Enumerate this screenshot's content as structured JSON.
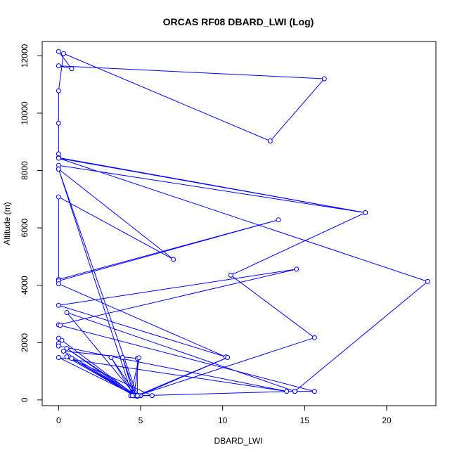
{
  "chart_data": {
    "type": "line",
    "title": "ORCAS RF08 DBARD_LWI (Log)",
    "xlabel": "DBARD_LWI",
    "ylabel": "Altitude (m)",
    "xlim": [
      -1.0,
      23.0
    ],
    "ylim": [
      -200,
      12500
    ],
    "xticks": [
      0,
      5,
      10,
      15,
      20
    ],
    "yticks": [
      0,
      2000,
      4000,
      6000,
      8000,
      10000,
      12000
    ],
    "grid": false,
    "color": "#0000ff",
    "series": [
      {
        "points": [
          [
            0.0,
            12150
          ],
          [
            0.8,
            11550
          ],
          [
            0.0,
            11650
          ],
          [
            16.2,
            11200
          ],
          [
            12.9,
            9030
          ],
          [
            0.3,
            12080
          ],
          [
            0.0,
            10780
          ],
          [
            0.0,
            9650
          ],
          [
            0.0,
            8580
          ],
          [
            0.0,
            8450
          ],
          [
            18.7,
            6530
          ],
          [
            0.0,
            8180
          ],
          [
            0.0,
            8050
          ],
          [
            7.0,
            4900
          ],
          [
            0.0,
            7080
          ],
          [
            0.0,
            4200
          ],
          [
            13.4,
            6280
          ],
          [
            0.0,
            4150
          ],
          [
            0.0,
            4050
          ],
          [
            10.2,
            1500
          ],
          [
            0.0,
            3300
          ],
          [
            14.5,
            4560
          ],
          [
            0.0,
            2620
          ],
          [
            0.1,
            2600
          ],
          [
            15.6,
            300
          ],
          [
            14.4,
            300
          ],
          [
            0.5,
            3050
          ],
          [
            4.7,
            150
          ],
          [
            0.2,
            2080
          ],
          [
            0.0,
            2150
          ],
          [
            0.0,
            1970
          ],
          [
            0.0,
            1880
          ],
          [
            13.9,
            300
          ],
          [
            0.0,
            1480
          ],
          [
            4.7,
            150
          ],
          [
            0.3,
            1700
          ],
          [
            4.8,
            1450
          ],
          [
            4.8,
            130
          ],
          [
            0.8,
            1450
          ],
          [
            4.6,
            150
          ],
          [
            0.5,
            1800
          ],
          [
            4.8,
            130
          ],
          [
            3.2,
            1480
          ],
          [
            4.6,
            150
          ],
          [
            3.9,
            1480
          ],
          [
            4.7,
            160
          ],
          [
            4.4,
            150
          ],
          [
            4.9,
            1470
          ],
          [
            4.6,
            150
          ],
          [
            0.5,
            1500
          ],
          [
            5.7,
            150
          ],
          [
            4.8,
            150
          ],
          [
            15.6,
            2170
          ],
          [
            10.5,
            4350
          ],
          [
            10.5,
            4350
          ],
          [
            18.7,
            6530
          ],
          [
            0.0,
            8430
          ],
          [
            22.5,
            4130
          ],
          [
            14.4,
            300
          ],
          [
            5.0,
            150
          ],
          [
            4.8,
            160
          ],
          [
            10.3,
            1480
          ],
          [
            4.9,
            150
          ],
          [
            4.5,
            150
          ],
          [
            0.0,
            8050
          ],
          [
            4.8,
            150
          ]
        ]
      }
    ]
  }
}
